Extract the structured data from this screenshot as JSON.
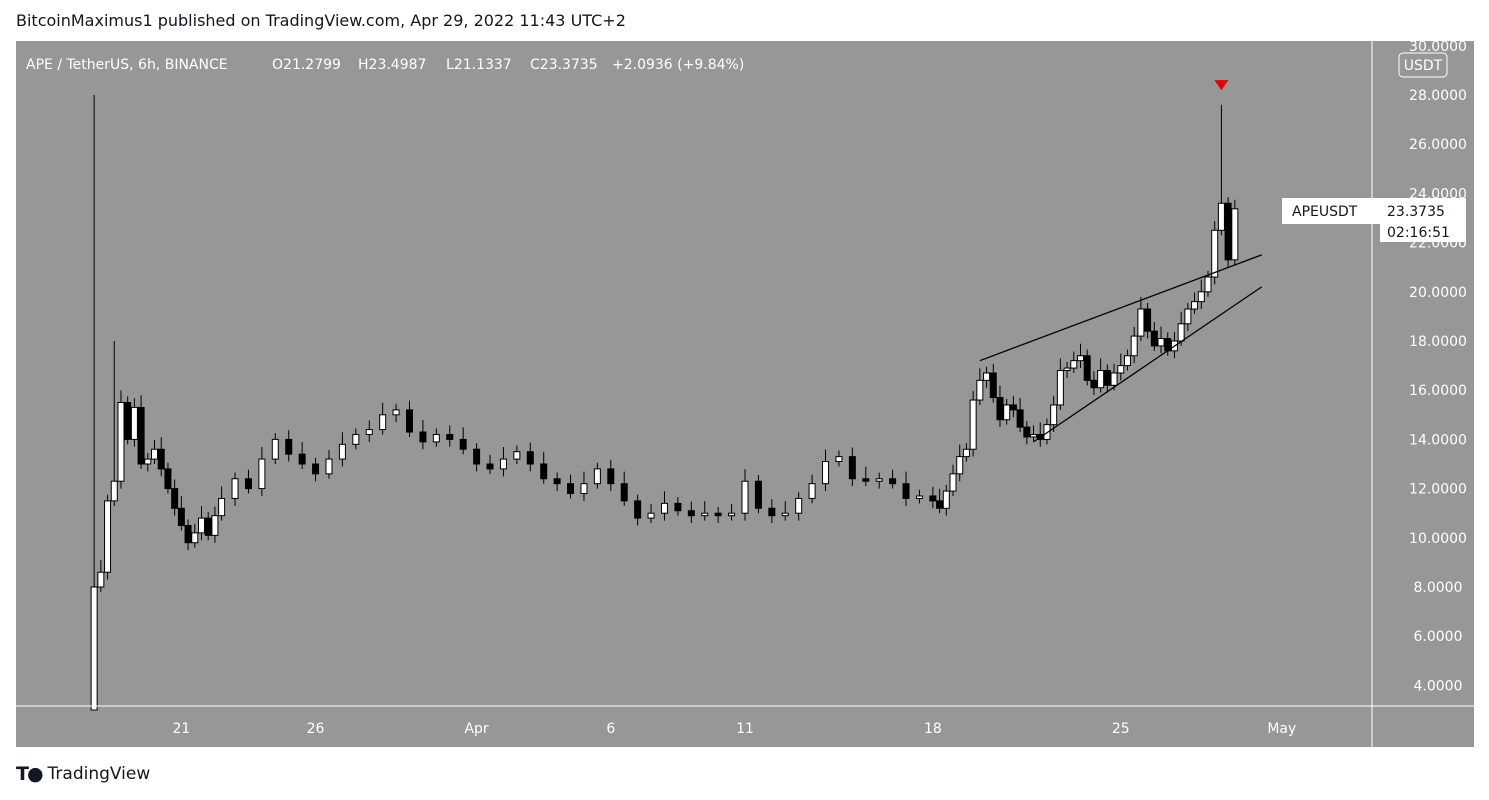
{
  "header": {
    "published_by": "BitcoinMaximus1 published on TradingView.com, Apr 29, 2022 11:43 UTC+2"
  },
  "legend": {
    "symbol": "APE / TetherUS, 6h, BINANCE",
    "o_label": "O",
    "o_value": "21.2799",
    "h_label": "H",
    "h_value": "23.4987",
    "l_label": "L",
    "l_value": "21.1337",
    "c_label": "C",
    "c_value": "23.3735",
    "change": "+2.0936 (+9.84%)"
  },
  "price_axis": {
    "currency": "USDT",
    "ticks": [
      "30.0000",
      "28.0000",
      "26.0000",
      "24.0000",
      "22.0000",
      "20.0000",
      "18.0000",
      "16.0000",
      "14.0000",
      "12.0000",
      "10.0000",
      "8.0000",
      "6.0000",
      "4.0000"
    ]
  },
  "time_axis": {
    "ticks": [
      "21",
      "26",
      "Apr",
      "6",
      "11",
      "18",
      "25",
      "May"
    ]
  },
  "last_price": {
    "symbol": "APEUSDT",
    "price": "23.3735",
    "countdown": "02:16:51"
  },
  "footer": {
    "brand": "TradingView",
    "logo_icon": "tradingview-logo-icon"
  },
  "colors": {
    "background": "#969799",
    "up_candle": "#ffffff",
    "down_candle": "#000000",
    "marker": "#e60000",
    "axis_text": "#ffffff"
  },
  "chart_data": {
    "type": "candlestick",
    "symbol": "APE / TetherUS",
    "interval": "6h",
    "exchange": "BINANCE",
    "ylim": [
      3,
      30.2
    ],
    "xlim": [
      "2022-03-17",
      "2022-05-03"
    ],
    "x_ticks": [
      "2022-03-21",
      "2022-03-26",
      "2022-04-01",
      "2022-04-06",
      "2022-04-11",
      "2022-04-18",
      "2022-04-25",
      "2022-05-01"
    ],
    "series": [
      {
        "type": "candlestick",
        "close_path": [
          [
            "2022-03-17T12:00",
            3.0
          ],
          [
            "2022-03-17T18:00",
            8.0
          ],
          [
            "2022-03-18T00:00",
            8.6
          ],
          [
            "2022-03-18T06:00",
            11.5
          ],
          [
            "2022-03-18T12:00",
            12.3
          ],
          [
            "2022-03-18T18:00",
            15.5
          ],
          [
            "2022-03-19T00:00",
            14.0
          ],
          [
            "2022-03-19T06:00",
            15.3
          ],
          [
            "2022-03-19T12:00",
            13.0
          ],
          [
            "2022-03-19T18:00",
            13.2
          ],
          [
            "2022-03-20T00:00",
            13.6
          ],
          [
            "2022-03-20T06:00",
            12.8
          ],
          [
            "2022-03-20T12:00",
            12.0
          ],
          [
            "2022-03-20T18:00",
            11.2
          ],
          [
            "2022-03-21T00:00",
            10.5
          ],
          [
            "2022-03-21T06:00",
            9.8
          ],
          [
            "2022-03-21T12:00",
            10.2
          ],
          [
            "2022-03-21T18:00",
            10.8
          ],
          [
            "2022-03-22T00:00",
            10.1
          ],
          [
            "2022-03-22T06:00",
            10.9
          ],
          [
            "2022-03-22T12:00",
            11.6
          ],
          [
            "2022-03-23T00:00",
            12.4
          ],
          [
            "2022-03-23T12:00",
            12.0
          ],
          [
            "2022-03-24T00:00",
            13.2
          ],
          [
            "2022-03-24T12:00",
            14.0
          ],
          [
            "2022-03-25T00:00",
            13.4
          ],
          [
            "2022-03-25T12:00",
            13.0
          ],
          [
            "2022-03-26T00:00",
            12.6
          ],
          [
            "2022-03-26T12:00",
            13.2
          ],
          [
            "2022-03-27T00:00",
            13.8
          ],
          [
            "2022-03-27T12:00",
            14.2
          ],
          [
            "2022-03-28T00:00",
            14.4
          ],
          [
            "2022-03-28T12:00",
            15.0
          ],
          [
            "2022-03-29T00:00",
            15.2
          ],
          [
            "2022-03-29T12:00",
            14.3
          ],
          [
            "2022-03-30T00:00",
            13.9
          ],
          [
            "2022-03-30T12:00",
            14.2
          ],
          [
            "2022-03-31T00:00",
            14.0
          ],
          [
            "2022-03-31T12:00",
            13.6
          ],
          [
            "2022-04-01T00:00",
            13.0
          ],
          [
            "2022-04-01T12:00",
            12.8
          ],
          [
            "2022-04-02T00:00",
            13.2
          ],
          [
            "2022-04-02T12:00",
            13.5
          ],
          [
            "2022-04-03T00:00",
            13.0
          ],
          [
            "2022-04-03T12:00",
            12.4
          ],
          [
            "2022-04-04T00:00",
            12.2
          ],
          [
            "2022-04-04T12:00",
            11.8
          ],
          [
            "2022-04-05T00:00",
            12.2
          ],
          [
            "2022-04-05T12:00",
            12.8
          ],
          [
            "2022-04-06T00:00",
            12.2
          ],
          [
            "2022-04-06T12:00",
            11.5
          ],
          [
            "2022-04-07T00:00",
            10.8
          ],
          [
            "2022-04-07T12:00",
            11.0
          ],
          [
            "2022-04-08T00:00",
            11.4
          ],
          [
            "2022-04-08T12:00",
            11.1
          ],
          [
            "2022-04-09T00:00",
            10.9
          ],
          [
            "2022-04-09T12:00",
            11.0
          ],
          [
            "2022-04-10T00:00",
            10.9
          ],
          [
            "2022-04-10T12:00",
            11.0
          ],
          [
            "2022-04-11T00:00",
            12.3
          ],
          [
            "2022-04-11T12:00",
            11.2
          ],
          [
            "2022-04-12T00:00",
            10.9
          ],
          [
            "2022-04-12T12:00",
            11.0
          ],
          [
            "2022-04-13T00:00",
            11.6
          ],
          [
            "2022-04-13T12:00",
            12.2
          ],
          [
            "2022-04-14T00:00",
            13.1
          ],
          [
            "2022-04-14T12:00",
            13.3
          ],
          [
            "2022-04-15T00:00",
            12.4
          ],
          [
            "2022-04-15T12:00",
            12.3
          ],
          [
            "2022-04-16T00:00",
            12.4
          ],
          [
            "2022-04-16T12:00",
            12.2
          ],
          [
            "2022-04-17T00:00",
            11.6
          ],
          [
            "2022-04-17T12:00",
            11.7
          ],
          [
            "2022-04-18T00:00",
            11.5
          ],
          [
            "2022-04-18T06:00",
            11.2
          ],
          [
            "2022-04-18T12:00",
            11.9
          ],
          [
            "2022-04-18T18:00",
            12.6
          ],
          [
            "2022-04-19T00:00",
            13.3
          ],
          [
            "2022-04-19T06:00",
            13.6
          ],
          [
            "2022-04-19T12:00",
            15.6
          ],
          [
            "2022-04-19T18:00",
            16.4
          ],
          [
            "2022-04-20T00:00",
            16.7
          ],
          [
            "2022-04-20T06:00",
            15.7
          ],
          [
            "2022-04-20T12:00",
            14.8
          ],
          [
            "2022-04-20T18:00",
            15.4
          ],
          [
            "2022-04-21T00:00",
            15.2
          ],
          [
            "2022-04-21T06:00",
            14.5
          ],
          [
            "2022-04-21T12:00",
            14.1
          ],
          [
            "2022-04-21T18:00",
            14.2
          ],
          [
            "2022-04-22T00:00",
            14.0
          ],
          [
            "2022-04-22T06:00",
            14.6
          ],
          [
            "2022-04-22T12:00",
            15.4
          ],
          [
            "2022-04-22T18:00",
            16.8
          ],
          [
            "2022-04-23T00:00",
            16.9
          ],
          [
            "2022-04-23T06:00",
            17.2
          ],
          [
            "2022-04-23T12:00",
            17.4
          ],
          [
            "2022-04-23T18:00",
            16.4
          ],
          [
            "2022-04-24T00:00",
            16.1
          ],
          [
            "2022-04-24T06:00",
            16.8
          ],
          [
            "2022-04-24T12:00",
            16.2
          ],
          [
            "2022-04-24T18:00",
            16.7
          ],
          [
            "2022-04-25T00:00",
            17.0
          ],
          [
            "2022-04-25T06:00",
            17.4
          ],
          [
            "2022-04-25T12:00",
            18.2
          ],
          [
            "2022-04-25T18:00",
            19.3
          ],
          [
            "2022-04-26T00:00",
            18.4
          ],
          [
            "2022-04-26T06:00",
            17.8
          ],
          [
            "2022-04-26T12:00",
            18.1
          ],
          [
            "2022-04-26T18:00",
            17.6
          ],
          [
            "2022-04-27T00:00",
            18.0
          ],
          [
            "2022-04-27T06:00",
            18.7
          ],
          [
            "2022-04-27T12:00",
            19.3
          ],
          [
            "2022-04-27T18:00",
            19.6
          ],
          [
            "2022-04-28T00:00",
            20.0
          ],
          [
            "2022-04-28T06:00",
            20.6
          ],
          [
            "2022-04-28T12:00",
            22.5
          ],
          [
            "2022-04-28T18:00",
            23.6
          ],
          [
            "2022-04-29T00:00",
            21.3
          ],
          [
            "2022-04-29T06:00",
            23.3735
          ]
        ]
      }
    ],
    "wick_extremes": [
      {
        "date": "2022-03-17T12:00",
        "high": 28.0,
        "low": 3.0
      },
      {
        "date": "2022-03-18T12:00",
        "high": 18.0
      },
      {
        "date": "2022-04-28T18:00",
        "high": 27.6
      }
    ],
    "trendlines": [
      {
        "name": "resistance",
        "from": [
          "2022-04-19T18:00",
          17.2
        ],
        "to": [
          "2022-04-30T06:00",
          21.5
        ]
      },
      {
        "name": "support",
        "from": [
          "2022-04-21T18:00",
          13.9
        ],
        "to": [
          "2022-04-30T06:00",
          20.2
        ]
      }
    ],
    "marker": {
      "type": "down-triangle",
      "date": "2022-04-28T18:00",
      "price": 28.4
    },
    "last": {
      "open": 21.2799,
      "high": 23.4987,
      "low": 21.1337,
      "close": 23.3735,
      "change": 2.0936,
      "change_pct": 9.84
    }
  }
}
